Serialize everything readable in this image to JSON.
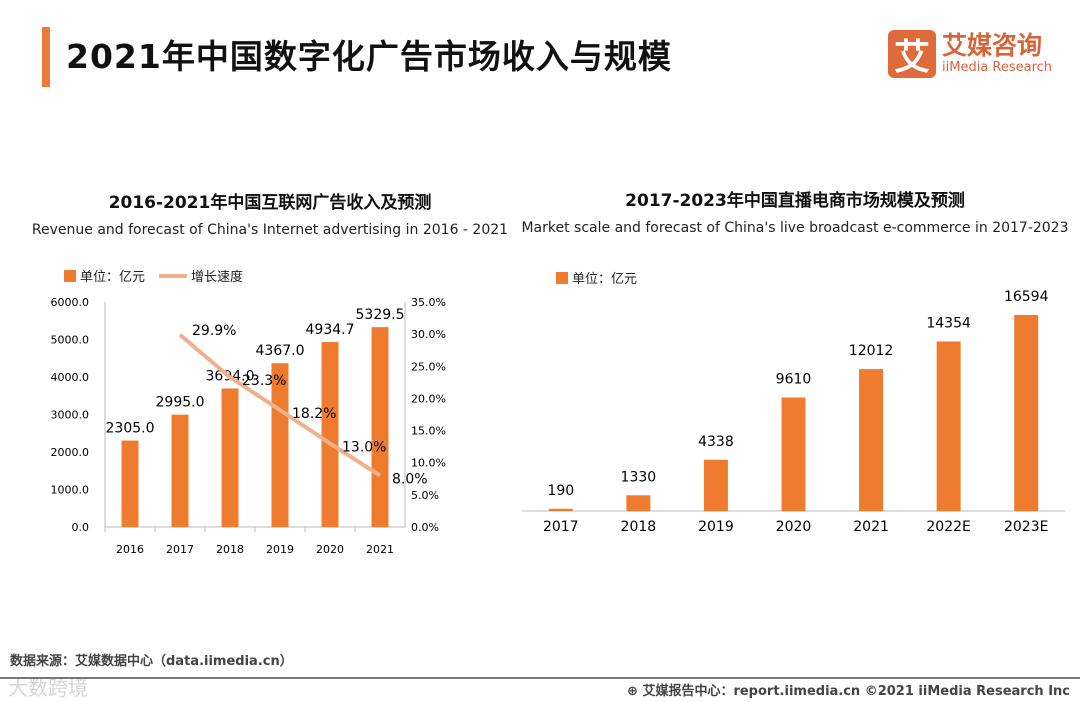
{
  "header": {
    "title": "2021年中国数字化广告市场收入与规模",
    "logo_mark": "艾",
    "logo_cn": "艾媒咨询",
    "logo_en": "iiMedia Research"
  },
  "colors": {
    "bar": "#ef7b2e",
    "line": "#f0b08e",
    "accent": "#ef7b3a"
  },
  "chart_data": [
    {
      "type": "bar+line",
      "title": "2016-2021年中国互联网广告收入及预测",
      "subtitle": "Revenue and forecast of China's Internet advertising in 2016 - 2021",
      "legend": [
        "单位：亿元",
        "增长速度"
      ],
      "legend_position": "top-left",
      "categories": [
        "2016",
        "2017",
        "2018",
        "2019",
        "2020",
        "2021"
      ],
      "series": [
        {
          "name": "单位：亿元",
          "type": "bar",
          "values": [
            2305.0,
            2995.0,
            3694.0,
            4367.0,
            4934.7,
            5329.5
          ],
          "labels": [
            "2305.0",
            "2995.0",
            "3694.0",
            "4367.0",
            "4934.7",
            "5329.5"
          ]
        },
        {
          "name": "增长速度",
          "type": "line",
          "axis": "right",
          "values": [
            null,
            29.9,
            23.3,
            18.2,
            13.0,
            8.0
          ],
          "labels": [
            "",
            "29.9%",
            "23.3%",
            "18.2%",
            "13.0%",
            "8.0%"
          ]
        }
      ],
      "ylim": [
        0,
        6000
      ],
      "y_ticks": [
        "0.0",
        "1000.0",
        "2000.0",
        "3000.0",
        "4000.0",
        "5000.0",
        "6000.0"
      ],
      "y2lim": [
        0,
        35
      ],
      "y2_ticks": [
        "0.0%",
        "5.0%",
        "10.0%",
        "15.0%",
        "20.0%",
        "25.0%",
        "30.0%",
        "35.0%"
      ]
    },
    {
      "type": "bar",
      "title": "2017-2023年中国直播电商市场规模及预测",
      "subtitle": "Market scale and forecast of China's live broadcast e-commerce in 2017-2023",
      "legend": [
        "单位：亿元"
      ],
      "legend_position": "top-left",
      "categories": [
        "2017",
        "2018",
        "2019",
        "2020",
        "2021",
        "2022E",
        "2023E"
      ],
      "values": [
        190,
        1330,
        4338,
        9610,
        12012,
        14354,
        16594
      ],
      "labels": [
        "190",
        "1330",
        "4338",
        "9610",
        "12012",
        "14354",
        "16594"
      ]
    }
  ],
  "footer": {
    "source": "数据来源：艾媒数据中心（data.iimedia.cn）",
    "report": "艾媒报告中心：report.iimedia.cn   ©2021  iiMedia Research  Inc",
    "watermark": "大数跨境"
  }
}
